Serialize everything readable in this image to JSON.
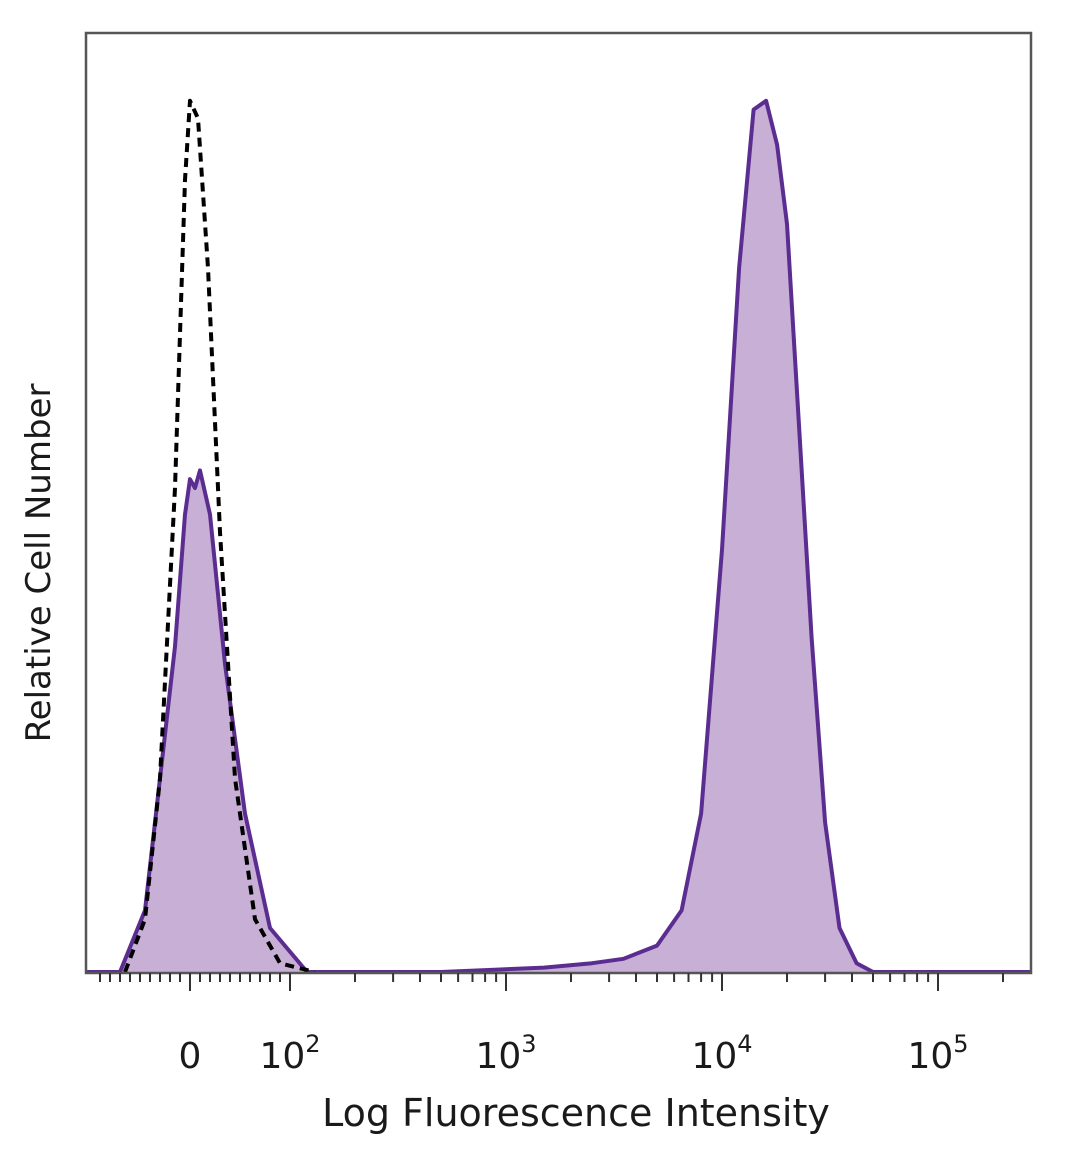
{
  "chart_data": {
    "type": "area",
    "title": "",
    "xlabel": "Log Fluorescence Intensity",
    "ylabel": "Relative Cell Number",
    "x_scale": "biexponential",
    "ylim": [
      0,
      1
    ],
    "grid": false,
    "legend": "none",
    "ticks": [
      {
        "label": "0",
        "base": "",
        "exp": "",
        "value": 0
      },
      {
        "label": "",
        "base": "10",
        "exp": "2",
        "value": 100
      },
      {
        "label": "",
        "base": "10",
        "exp": "3",
        "value": 1000
      },
      {
        "label": "",
        "base": "10",
        "exp": "4",
        "value": 10000
      },
      {
        "label": "",
        "base": "10",
        "exp": "5",
        "value": 100000
      }
    ],
    "series": [
      {
        "style": "filled-solid",
        "color": "#5b2d90",
        "fill": "#c7afd6",
        "x": [
          -70,
          -45,
          -30,
          -15,
          -5,
          0,
          5,
          10,
          20,
          35,
          55,
          80,
          120,
          200,
          500,
          1500,
          2500,
          3500,
          5000,
          6500,
          8000,
          10000,
          12000,
          14000,
          16000,
          18000,
          20000,
          23000,
          26000,
          30000,
          35000,
          42000,
          50000
        ],
        "y": [
          0.0,
          0.07,
          0.22,
          0.37,
          0.52,
          0.56,
          0.55,
          0.57,
          0.52,
          0.35,
          0.18,
          0.05,
          0.0,
          0.0,
          0.0,
          0.005,
          0.01,
          0.015,
          0.03,
          0.07,
          0.18,
          0.48,
          0.8,
          0.98,
          0.99,
          0.94,
          0.85,
          0.6,
          0.38,
          0.17,
          0.05,
          0.01,
          0.0
        ]
      },
      {
        "style": "dashed-outline",
        "color": "#000000",
        "x": [
          -65,
          -45,
          -30,
          -15,
          -5,
          0,
          8,
          18,
          30,
          45,
          65,
          90,
          130
        ],
        "y": [
          0.0,
          0.06,
          0.22,
          0.55,
          0.9,
          0.99,
          0.97,
          0.8,
          0.5,
          0.22,
          0.06,
          0.01,
          0.0
        ]
      }
    ]
  }
}
